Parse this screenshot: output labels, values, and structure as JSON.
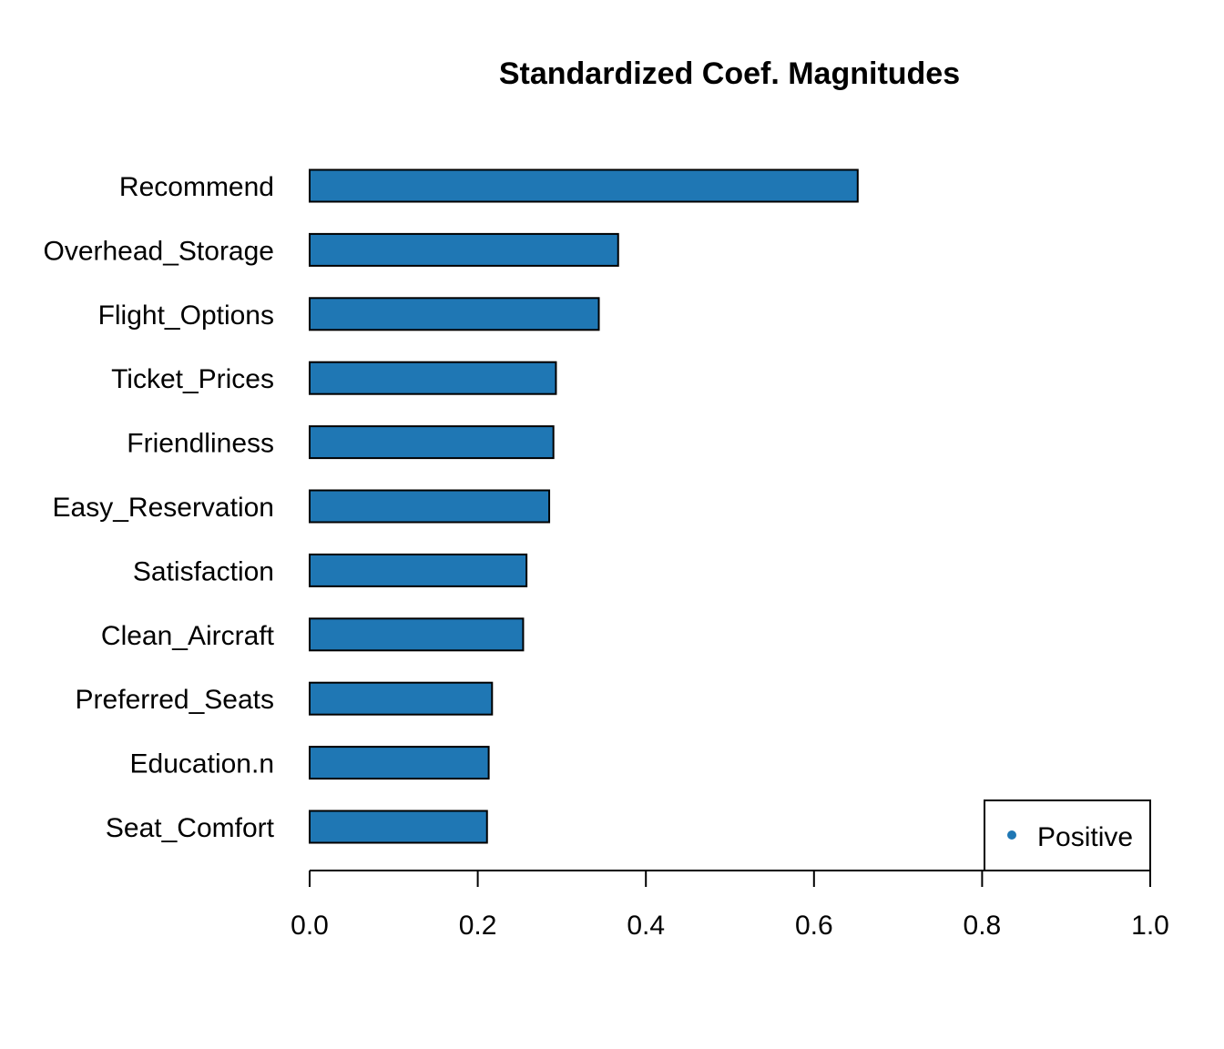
{
  "chart_data": {
    "type": "bar",
    "orientation": "horizontal",
    "title": "Standardized Coef. Magnitudes",
    "xlabel": "",
    "ylabel": "",
    "categories": [
      "Recommend",
      "Overhead_Storage",
      "Flight_Options",
      "Ticket_Prices",
      "Friendliness",
      "Easy_Reservation",
      "Satisfaction",
      "Clean_Aircraft",
      "Preferred_Seats",
      "Education.n",
      "Seat_Comfort"
    ],
    "values": [
      0.652,
      0.367,
      0.344,
      0.293,
      0.29,
      0.285,
      0.258,
      0.254,
      0.217,
      0.213,
      0.211
    ],
    "xlim": [
      0,
      1
    ],
    "xticks": [
      "0.0",
      "0.2",
      "0.4",
      "0.6",
      "0.8",
      "1.0"
    ],
    "grid": false,
    "legend": {
      "position": "bottom-right",
      "entries": [
        {
          "label": "Positive",
          "color": "#1f77b4"
        }
      ]
    },
    "bar_color": "#1f77b4"
  }
}
